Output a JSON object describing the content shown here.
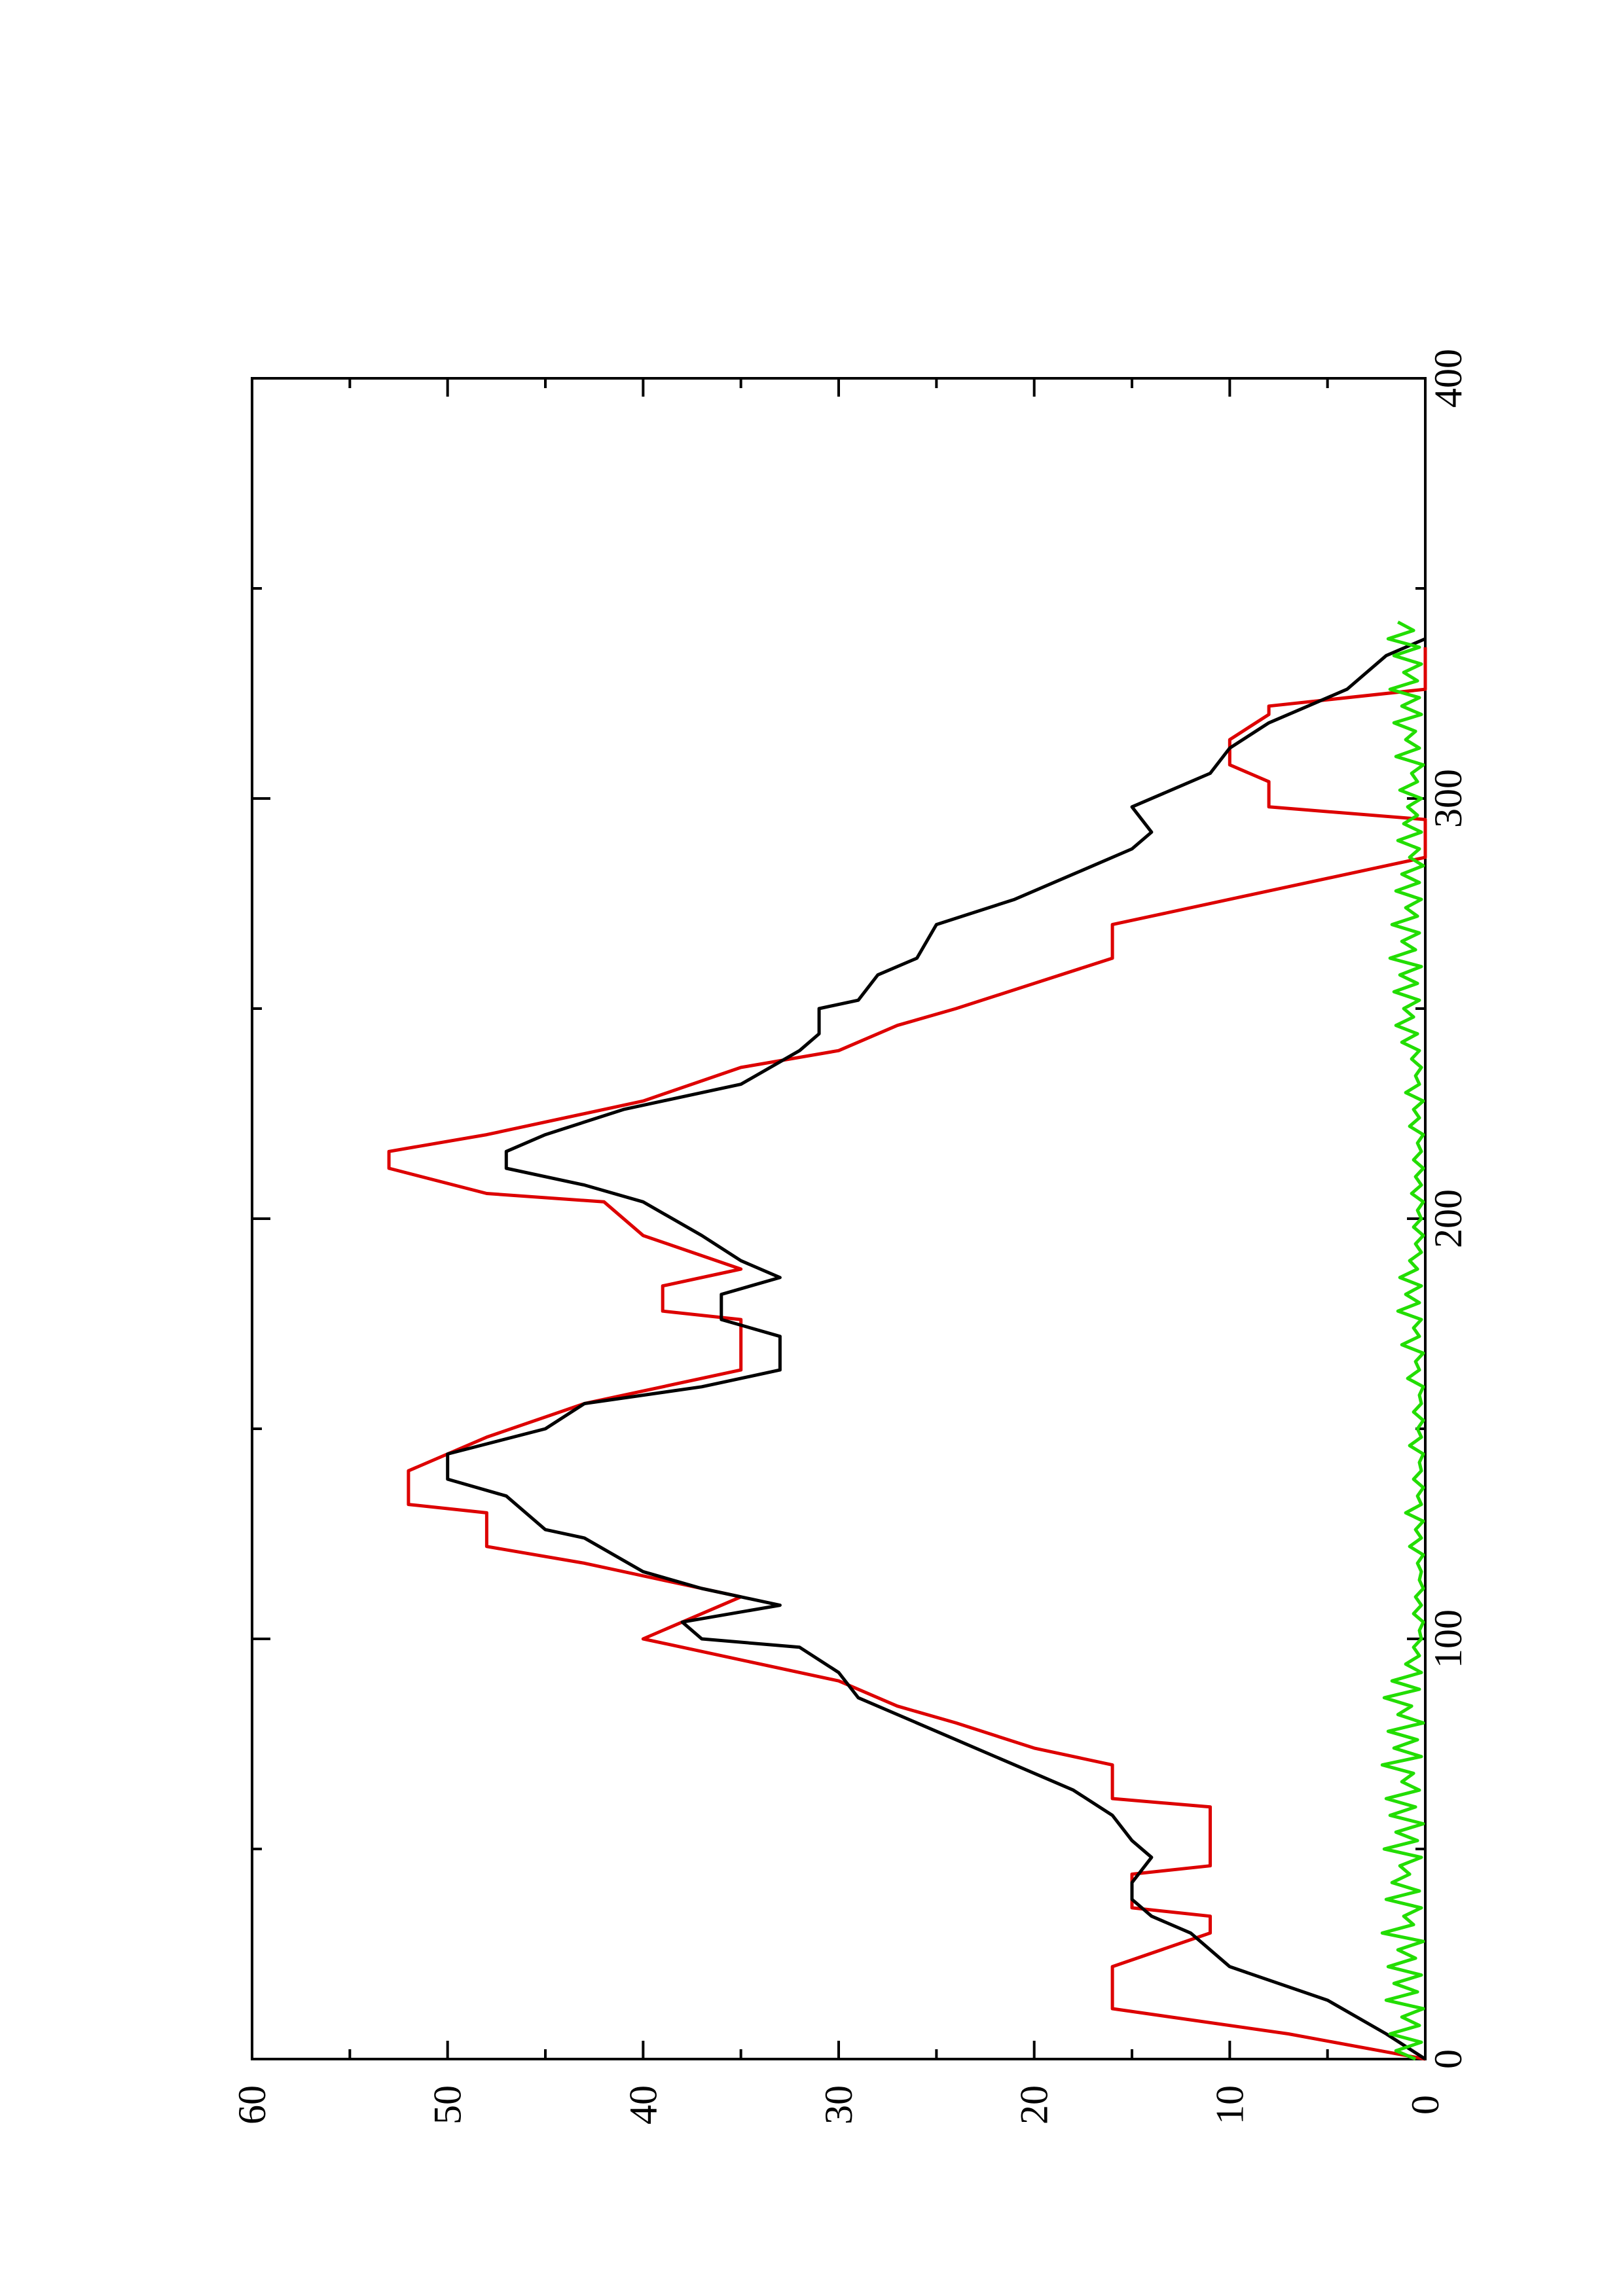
{
  "chart_data": {
    "type": "line",
    "orientation": "rotated-90-ccw",
    "xlim": [
      0,
      400
    ],
    "ylim": [
      0,
      60
    ],
    "x_ticks": [
      0,
      100,
      200,
      300,
      400
    ],
    "y_ticks": [
      0,
      10,
      20,
      30,
      40,
      50,
      60
    ],
    "x_tick_labels": [
      "0",
      "100",
      "200",
      "300",
      "400"
    ],
    "y_tick_labels": [
      "0",
      "10",
      "20",
      "30",
      "40",
      "50",
      "60"
    ],
    "x_minor_ticks": [
      50,
      150,
      250,
      350
    ],
    "y_minor_ticks": [
      5,
      15,
      25,
      35,
      45,
      55
    ],
    "grid": false,
    "legend": "none",
    "series": [
      {
        "color": "#dd0000",
        "points": [
          [
            0,
            0
          ],
          [
            6,
            7
          ],
          [
            12,
            16
          ],
          [
            22,
            16
          ],
          [
            30,
            11
          ],
          [
            34,
            11
          ],
          [
            36,
            15
          ],
          [
            44,
            15
          ],
          [
            46,
            11
          ],
          [
            60,
            11
          ],
          [
            62,
            16
          ],
          [
            70,
            16
          ],
          [
            74,
            20
          ],
          [
            80,
            24
          ],
          [
            84,
            27
          ],
          [
            90,
            30
          ],
          [
            100,
            40
          ],
          [
            110,
            35
          ],
          [
            118,
            43
          ],
          [
            122,
            48
          ],
          [
            130,
            48
          ],
          [
            132,
            52
          ],
          [
            140,
            52
          ],
          [
            148,
            48
          ],
          [
            156,
            43
          ],
          [
            164,
            35
          ],
          [
            176,
            35
          ],
          [
            178,
            39
          ],
          [
            184,
            39
          ],
          [
            188,
            35
          ],
          [
            196,
            40
          ],
          [
            204,
            42
          ],
          [
            206,
            48
          ],
          [
            212,
            53
          ],
          [
            216,
            53
          ],
          [
            220,
            48
          ],
          [
            228,
            40
          ],
          [
            236,
            35
          ],
          [
            240,
            30
          ],
          [
            246,
            27
          ],
          [
            250,
            24
          ],
          [
            256,
            20
          ],
          [
            262,
            16
          ],
          [
            270,
            16
          ],
          [
            278,
            8
          ],
          [
            282,
            4
          ],
          [
            286,
            0
          ],
          [
            295,
            0
          ],
          [
            298,
            8
          ],
          [
            304,
            8
          ],
          [
            308,
            10
          ],
          [
            314,
            10
          ],
          [
            320,
            8
          ],
          [
            322,
            8
          ],
          [
            326,
            0
          ],
          [
            336,
            0
          ]
        ]
      },
      {
        "color": "#000000",
        "points": [
          [
            0,
            0
          ],
          [
            6,
            2
          ],
          [
            14,
            5
          ],
          [
            22,
            10
          ],
          [
            30,
            12
          ],
          [
            34,
            14
          ],
          [
            38,
            15
          ],
          [
            42,
            15
          ],
          [
            48,
            14
          ],
          [
            52,
            15
          ],
          [
            58,
            16
          ],
          [
            64,
            18
          ],
          [
            70,
            21
          ],
          [
            76,
            24
          ],
          [
            80,
            26
          ],
          [
            86,
            29
          ],
          [
            92,
            30
          ],
          [
            98,
            32
          ],
          [
            100,
            37
          ],
          [
            104,
            38
          ],
          [
            108,
            33
          ],
          [
            112,
            37
          ],
          [
            116,
            40
          ],
          [
            124,
            43
          ],
          [
            126,
            45
          ],
          [
            134,
            47
          ],
          [
            138,
            50
          ],
          [
            144,
            50
          ],
          [
            150,
            45
          ],
          [
            156,
            43
          ],
          [
            160,
            37
          ],
          [
            164,
            33
          ],
          [
            172,
            33
          ],
          [
            176,
            36
          ],
          [
            182,
            36
          ],
          [
            186,
            33
          ],
          [
            190,
            35
          ],
          [
            196,
            37
          ],
          [
            204,
            40
          ],
          [
            208,
            43
          ],
          [
            212,
            47
          ],
          [
            216,
            47
          ],
          [
            220,
            45
          ],
          [
            226,
            41
          ],
          [
            232,
            35
          ],
          [
            240,
            32
          ],
          [
            244,
            31
          ],
          [
            250,
            31
          ],
          [
            252,
            29
          ],
          [
            258,
            28
          ],
          [
            262,
            26
          ],
          [
            270,
            25
          ],
          [
            276,
            21
          ],
          [
            282,
            18
          ],
          [
            288,
            15
          ],
          [
            292,
            14
          ],
          [
            298,
            15
          ],
          [
            302,
            13
          ],
          [
            306,
            11
          ],
          [
            312,
            10
          ],
          [
            318,
            8
          ],
          [
            322,
            6
          ],
          [
            326,
            4
          ],
          [
            330,
            3
          ],
          [
            334,
            2
          ],
          [
            338,
            0
          ]
        ]
      },
      {
        "color": "#22dd00",
        "points": [
          [
            0,
            0.5
          ],
          [
            2,
            1.5
          ],
          [
            4,
            0.2
          ],
          [
            6,
            1.8
          ],
          [
            8,
            0.3
          ],
          [
            10,
            1.2
          ],
          [
            12,
            0.1
          ],
          [
            14,
            2.0
          ],
          [
            16,
            0.4
          ],
          [
            18,
            1.6
          ],
          [
            20,
            0.2
          ],
          [
            22,
            1.9
          ],
          [
            24,
            0.5
          ],
          [
            26,
            1.4
          ],
          [
            28,
            0.1
          ],
          [
            30,
            2.2
          ],
          [
            32,
            0.6
          ],
          [
            34,
            1.1
          ],
          [
            36,
            0.2
          ],
          [
            38,
            2.0
          ],
          [
            40,
            0.3
          ],
          [
            42,
            1.7
          ],
          [
            44,
            0.8
          ],
          [
            46,
            1.3
          ],
          [
            48,
            0.2
          ],
          [
            50,
            2.1
          ],
          [
            52,
            0.4
          ],
          [
            54,
            1.5
          ],
          [
            56,
            0.1
          ],
          [
            58,
            1.8
          ],
          [
            60,
            0.5
          ],
          [
            62,
            2.0
          ],
          [
            64,
            0.3
          ],
          [
            66,
            1.2
          ],
          [
            68,
            0.6
          ],
          [
            70,
            2.2
          ],
          [
            72,
            0.2
          ],
          [
            74,
            1.6
          ],
          [
            76,
            0.4
          ],
          [
            78,
            1.9
          ],
          [
            80,
            0.1
          ],
          [
            82,
            1.4
          ],
          [
            84,
            0.7
          ],
          [
            86,
            2.1
          ],
          [
            88,
            0.3
          ],
          [
            90,
            1.7
          ],
          [
            92,
            0.2
          ],
          [
            94,
            1.0
          ],
          [
            96,
            0.3
          ],
          [
            98,
            0.6
          ],
          [
            100,
            0.2
          ],
          [
            102,
            0.3
          ],
          [
            104,
            0.1
          ],
          [
            106,
            0.6
          ],
          [
            108,
            0.2
          ],
          [
            110,
            0.5
          ],
          [
            112,
            0.1
          ],
          [
            114,
            0.3
          ],
          [
            116,
            0.2
          ],
          [
            118,
            0.4
          ],
          [
            120,
            0.1
          ],
          [
            122,
            0.8
          ],
          [
            124,
            0.2
          ],
          [
            126,
            0.5
          ],
          [
            128,
            0.1
          ],
          [
            130,
            1.0
          ],
          [
            132,
            0.2
          ],
          [
            134,
            0.4
          ],
          [
            136,
            0.1
          ],
          [
            138,
            0.6
          ],
          [
            140,
            0.2
          ],
          [
            142,
            0.3
          ],
          [
            144,
            0.1
          ],
          [
            146,
            0.8
          ],
          [
            148,
            0.2
          ],
          [
            150,
            0.4
          ],
          [
            152,
            0.1
          ],
          [
            154,
            0.6
          ],
          [
            156,
            0.2
          ],
          [
            158,
            0.3
          ],
          [
            160,
            0.1
          ],
          [
            162,
            0.9
          ],
          [
            164,
            0.3
          ],
          [
            166,
            0.5
          ],
          [
            168,
            0.1
          ],
          [
            170,
            1.2
          ],
          [
            172,
            0.3
          ],
          [
            174,
            0.6
          ],
          [
            176,
            0.2
          ],
          [
            178,
            1.4
          ],
          [
            180,
            0.3
          ],
          [
            182,
            1.0
          ],
          [
            184,
            0.2
          ],
          [
            186,
            1.3
          ],
          [
            188,
            0.4
          ],
          [
            190,
            0.8
          ],
          [
            192,
            0.2
          ],
          [
            194,
            0.5
          ],
          [
            196,
            0.1
          ],
          [
            198,
            0.6
          ],
          [
            200,
            0.2
          ],
          [
            202,
            0.4
          ],
          [
            204,
            0.1
          ],
          [
            206,
            0.7
          ],
          [
            208,
            0.2
          ],
          [
            210,
            0.5
          ],
          [
            212,
            0.1
          ],
          [
            214,
            0.6
          ],
          [
            216,
            0.2
          ],
          [
            218,
            0.4
          ],
          [
            220,
            0.1
          ],
          [
            222,
            0.8
          ],
          [
            224,
            0.3
          ],
          [
            226,
            0.6
          ],
          [
            228,
            0.1
          ],
          [
            230,
            1.0
          ],
          [
            232,
            0.3
          ],
          [
            234,
            0.5
          ],
          [
            236,
            0.2
          ],
          [
            238,
            0.7
          ],
          [
            240,
            0.3
          ],
          [
            242,
            1.2
          ],
          [
            244,
            0.4
          ],
          [
            246,
            1.5
          ],
          [
            248,
            0.6
          ],
          [
            250,
            1.1
          ],
          [
            252,
            0.3
          ],
          [
            254,
            1.6
          ],
          [
            256,
            0.4
          ],
          [
            258,
            1.3
          ],
          [
            260,
            0.2
          ],
          [
            262,
            1.8
          ],
          [
            264,
            0.5
          ],
          [
            266,
            1.2
          ],
          [
            268,
            0.3
          ],
          [
            270,
            1.7
          ],
          [
            272,
            0.4
          ],
          [
            274,
            1.0
          ],
          [
            276,
            0.2
          ],
          [
            278,
            1.5
          ],
          [
            280,
            0.3
          ],
          [
            282,
            1.2
          ],
          [
            284,
            0.1
          ],
          [
            286,
            0.8
          ],
          [
            288,
            0.3
          ],
          [
            290,
            1.4
          ],
          [
            292,
            0.2
          ],
          [
            294,
            1.1
          ],
          [
            296,
            0.4
          ],
          [
            298,
            0.9
          ],
          [
            300,
            0.2
          ],
          [
            302,
            1.3
          ],
          [
            304,
            0.4
          ],
          [
            306,
            0.7
          ],
          [
            308,
            0.1
          ],
          [
            310,
            1.5
          ],
          [
            312,
            0.3
          ],
          [
            314,
            1.0
          ],
          [
            316,
            0.5
          ],
          [
            318,
            1.6
          ],
          [
            320,
            0.2
          ],
          [
            322,
            1.2
          ],
          [
            324,
            0.3
          ],
          [
            326,
            1.8
          ],
          [
            328,
            0.4
          ],
          [
            330,
            1.1
          ],
          [
            332,
            0.2
          ],
          [
            334,
            1.6
          ],
          [
            336,
            0.3
          ],
          [
            338,
            1.9
          ],
          [
            340,
            0.6
          ],
          [
            342,
            1.4
          ]
        ]
      }
    ]
  }
}
